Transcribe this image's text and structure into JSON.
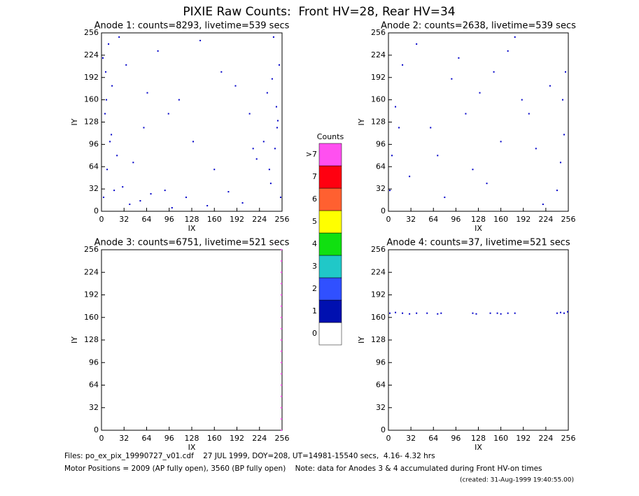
{
  "title": "PIXIE Raw Counts:  Front HV=28, Rear HV=34",
  "chart_data": [
    {
      "type": "scatter",
      "title": "Anode 1: counts=8293, livetime=539 secs",
      "xlabel": "IX",
      "ylabel": "IY",
      "xlim": [
        0,
        256
      ],
      "ylim": [
        0,
        256
      ],
      "xticks": [
        0,
        32,
        64,
        96,
        128,
        160,
        192,
        224,
        256
      ],
      "yticks": [
        0,
        32,
        64,
        96,
        128,
        160,
        192,
        224,
        256
      ],
      "series": [
        {
          "color": "#0000c8",
          "x": [
            3,
            8,
            12,
            5,
            15,
            2,
            10,
            18,
            6,
            22,
            240,
            246,
            250,
            235,
            252,
            244,
            238,
            248,
            230,
            254,
            40,
            70,
            100,
            30,
            55,
            90,
            120,
            150,
            180,
            200,
            60,
            110,
            170,
            210,
            80,
            25,
            140,
            215,
            45,
            190,
            14,
            7,
            249,
            242,
            160,
            130,
            95,
            35,
            65,
            220
          ],
          "y": [
            20,
            60,
            100,
            140,
            180,
            220,
            240,
            30,
            200,
            80,
            40,
            90,
            130,
            170,
            210,
            250,
            60,
            150,
            100,
            20,
            10,
            25,
            5,
            35,
            15,
            30,
            20,
            8,
            28,
            12,
            120,
            160,
            200,
            140,
            230,
            250,
            245,
            90,
            70,
            180,
            110,
            160,
            120,
            190,
            60,
            100,
            140,
            210,
            170,
            75
          ]
        }
      ]
    },
    {
      "type": "scatter",
      "title": "Anode 2: counts=2638, livetime=539 secs",
      "xlabel": "IX",
      "ylabel": "IY",
      "xlim": [
        0,
        256
      ],
      "ylim": [
        0,
        256
      ],
      "xticks": [
        0,
        32,
        64,
        96,
        128,
        160,
        192,
        224,
        256
      ],
      "yticks": [
        0,
        32,
        64,
        96,
        128,
        160,
        192,
        224,
        256
      ],
      "series": [
        {
          "color": "#0000c8",
          "x": [
            2,
            5,
            10,
            20,
            40,
            80,
            120,
            160,
            200,
            230,
            240,
            245,
            250,
            248,
            252,
            60,
            100,
            140,
            180,
            30,
            90,
            130,
            170,
            210,
            15,
            220,
            70,
            110,
            150,
            190
          ],
          "y": [
            30,
            80,
            150,
            210,
            240,
            20,
            60,
            100,
            140,
            180,
            30,
            70,
            110,
            160,
            200,
            120,
            220,
            40,
            250,
            50,
            190,
            170,
            230,
            90,
            120,
            10,
            80,
            140,
            200,
            160
          ]
        }
      ]
    },
    {
      "type": "scatter",
      "title": "Anode 3: counts=6751, livetime=521 secs",
      "xlabel": "IX",
      "ylabel": "IY",
      "xlim": [
        0,
        256
      ],
      "ylim": [
        0,
        256
      ],
      "xticks": [
        0,
        32,
        64,
        96,
        128,
        160,
        192,
        224,
        256
      ],
      "yticks": [
        0,
        32,
        64,
        96,
        128,
        160,
        192,
        224,
        256
      ],
      "series": [
        {
          "color": "#ff50f0",
          "x": [
            255,
            255,
            255,
            255,
            255,
            255,
            255,
            255,
            255,
            255,
            255,
            255,
            255,
            255,
            255,
            255,
            255
          ],
          "y": [
            0,
            16,
            32,
            48,
            64,
            80,
            96,
            112,
            128,
            144,
            160,
            176,
            192,
            208,
            224,
            240,
            256
          ]
        }
      ]
    },
    {
      "type": "scatter",
      "title": "Anode 4: counts=37, livetime=521 secs",
      "xlabel": "IX",
      "ylabel": "IY",
      "xlim": [
        0,
        256
      ],
      "ylim": [
        0,
        256
      ],
      "xticks": [
        0,
        32,
        64,
        96,
        128,
        160,
        192,
        224,
        256
      ],
      "yticks": [
        0,
        32,
        64,
        96,
        128,
        160,
        192,
        224,
        256
      ],
      "series": [
        {
          "color": "#0000c8",
          "x": [
            2,
            10,
            20,
            30,
            40,
            55,
            70,
            75,
            120,
            125,
            145,
            155,
            160,
            170,
            180,
            240,
            245,
            250,
            255
          ],
          "y": [
            166,
            167,
            166,
            165,
            166,
            166,
            165,
            166,
            166,
            165,
            166,
            166,
            165,
            166,
            166,
            166,
            167,
            166,
            168
          ]
        }
      ]
    }
  ],
  "colorbar": {
    "title": "Counts",
    "labels": [
      "0",
      "1",
      "2",
      "3",
      "4",
      "5",
      "6",
      "7",
      ">7"
    ],
    "colors": [
      "#ffffff",
      "#0010b0",
      "#3050ff",
      "#20c8c8",
      "#10e010",
      "#ffff00",
      "#ff6030",
      "#ff0010",
      "#ff50f0"
    ]
  },
  "footer": {
    "files": "Files: po_ex_pix_19990727_v01.cdf    27 JUL 1999, DOY=208, UT=14981-15540 secs,  4.16- 4.32 hrs",
    "motor": "Motor Positions = 2009 (AP fully open), 3560 (BP fully open)    Note: data for Anodes 3 & 4 accumulated during Front HV-on times",
    "created": "(created: 31-Aug-1999 19:40:55.00)"
  }
}
